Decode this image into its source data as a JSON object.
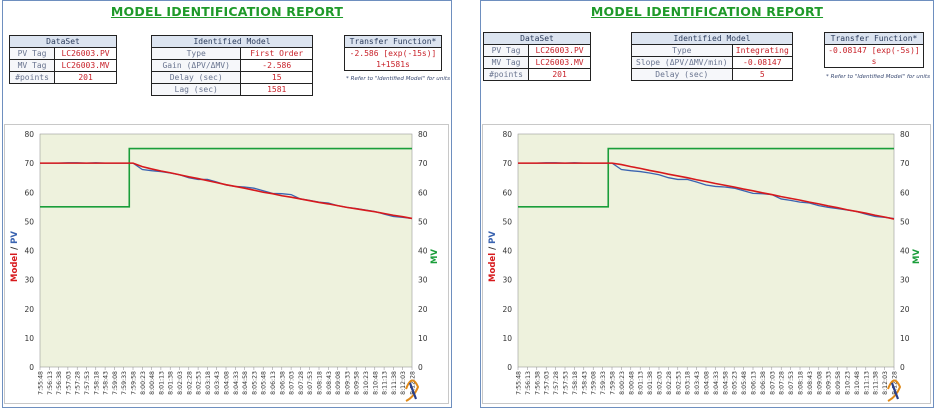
{
  "panels": [
    {
      "title": "MODEL IDENTIFICATION REPORT",
      "dataset": {
        "header": "DataSet",
        "rows": [
          {
            "label": "PV Tag",
            "value": "LC26003.PV"
          },
          {
            "label": "MV Tag",
            "value": "LC26003.MV"
          },
          {
            "label": "#points",
            "value": "201"
          }
        ]
      },
      "model": {
        "header": "Identified Model",
        "rows": [
          {
            "label": "Type",
            "value": "First Order"
          },
          {
            "label": "Gain (ΔPV/ΔMV)",
            "value": "-2.586"
          },
          {
            "label": "Delay (sec)",
            "value": "15"
          },
          {
            "label": "Lag (sec)",
            "value": "1581"
          }
        ]
      },
      "transfer": {
        "header": "Transfer Function*",
        "numerator": "-2.586 [exp(-15s)]",
        "denominator": "1+1581s",
        "note": "* Refer to \"Identified Model\" for units"
      }
    },
    {
      "title": "MODEL IDENTIFICATION REPORT",
      "dataset": {
        "header": "DataSet",
        "rows": [
          {
            "label": "PV Tag",
            "value": "LC26003.PV"
          },
          {
            "label": "MV Tag",
            "value": "LC26003.MV"
          },
          {
            "label": "#points",
            "value": "201"
          }
        ]
      },
      "model": {
        "header": "Identified Model",
        "rows": [
          {
            "label": "Type",
            "value": "Integrating"
          },
          {
            "label": "Slope (ΔPV/ΔMV/min)",
            "value": "-0.08147"
          },
          {
            "label": "Delay (sec)",
            "value": "5"
          }
        ]
      },
      "transfer": {
        "header": "Transfer Function*",
        "numerator": "-0.08147 [exp(-5s)]",
        "denominator": "s",
        "note": "* Refer to \"Identified Model\" for units"
      }
    }
  ],
  "chart_data": [
    {
      "type": "line",
      "ylabel_left_parts": [
        "Model",
        " / ",
        "PV"
      ],
      "ylabel_right": "MV",
      "ylim_left": [
        0,
        80
      ],
      "ylim_right": [
        0,
        80
      ],
      "yticks": [
        0,
        10,
        20,
        30,
        40,
        50,
        60,
        70,
        80
      ],
      "categories": [
        "7:55:48",
        "7:56:13",
        "7:56:38",
        "7:57:03",
        "7:57:28",
        "7:57:53",
        "7:58:18",
        "7:58:43",
        "7:59:08",
        "7:59:33",
        "7:59:58",
        "8:00:23",
        "8:00:48",
        "8:01:13",
        "8:01:38",
        "8:02:03",
        "8:02:28",
        "8:02:53",
        "8:03:18",
        "8:03:43",
        "8:04:08",
        "8:04:33",
        "8:04:58",
        "8:05:23",
        "8:05:48",
        "8:06:13",
        "8:06:38",
        "8:07:03",
        "8:07:28",
        "8:07:53",
        "8:08:18",
        "8:08:43",
        "8:09:08",
        "8:09:33",
        "8:09:58",
        "8:10:23",
        "8:10:48",
        "8:11:13",
        "8:11:38",
        "8:12:03",
        "8:12:28"
      ],
      "grid": false,
      "colors": {
        "model": "#d7191c",
        "pv": "#3a63b0",
        "mv": "#1a9e3a",
        "plot_bg": "#eef2dd"
      },
      "series": [
        {
          "key": "mv",
          "values": [
            55,
            55,
            55,
            55,
            55,
            55,
            55,
            55,
            55,
            55,
            75,
            75,
            75,
            75,
            75,
            75,
            75,
            75,
            75,
            75,
            75,
            75,
            75,
            75,
            75,
            75,
            75,
            75,
            75,
            75,
            75,
            75,
            75,
            75,
            75,
            75,
            75,
            75,
            75,
            75,
            75
          ]
        },
        {
          "key": "pv",
          "values": [
            70,
            70,
            70,
            70.1,
            70.1,
            70,
            70.1,
            70,
            70,
            70,
            70,
            67.8,
            67.4,
            67.1,
            66.6,
            66,
            65,
            64.4,
            64.4,
            63.5,
            62.5,
            62,
            61.8,
            61.4,
            60.5,
            59.6,
            59.5,
            59.2,
            57.7,
            57.2,
            56.6,
            56.3,
            55.4,
            54.8,
            54.4,
            53.9,
            53.4,
            52.5,
            51.7,
            51.4,
            51
          ]
        },
        {
          "key": "model",
          "values": [
            70,
            70,
            70,
            70,
            70,
            70,
            70,
            70,
            70,
            70,
            70,
            68.8,
            68,
            67.3,
            66.7,
            66,
            65.3,
            64.7,
            64,
            63.3,
            62.6,
            62,
            61.4,
            60.7,
            60,
            59.5,
            58.8,
            58.3,
            57.7,
            57.1,
            56.5,
            56,
            55.4,
            54.8,
            54.3,
            53.8,
            53.3,
            52.7,
            52.1,
            51.6,
            51
          ]
        }
      ]
    },
    {
      "type": "line",
      "ylabel_left_parts": [
        "Model",
        " / ",
        "PV"
      ],
      "ylabel_right": "MV",
      "ylim_left": [
        0,
        80
      ],
      "ylim_right": [
        0,
        80
      ],
      "yticks": [
        0,
        10,
        20,
        30,
        40,
        50,
        60,
        70,
        80
      ],
      "categories": [
        "7:55:48",
        "7:56:13",
        "7:56:38",
        "7:57:03",
        "7:57:28",
        "7:57:53",
        "7:58:18",
        "7:58:43",
        "7:59:08",
        "7:59:33",
        "7:59:58",
        "8:00:23",
        "8:00:48",
        "8:01:13",
        "8:01:38",
        "8:02:03",
        "8:02:28",
        "8:02:53",
        "8:03:18",
        "8:03:43",
        "8:04:08",
        "8:04:33",
        "8:04:58",
        "8:05:23",
        "8:05:48",
        "8:06:13",
        "8:06:38",
        "8:07:03",
        "8:07:28",
        "8:07:53",
        "8:08:18",
        "8:08:43",
        "8:09:08",
        "8:09:33",
        "8:09:58",
        "8:10:23",
        "8:10:48",
        "8:11:13",
        "8:11:38",
        "8:12:03",
        "8:12:28"
      ],
      "grid": false,
      "colors": {
        "model": "#d7191c",
        "pv": "#3a63b0",
        "mv": "#1a9e3a",
        "plot_bg": "#eef2dd"
      },
      "series": [
        {
          "key": "mv",
          "values": [
            55,
            55,
            55,
            55,
            55,
            55,
            55,
            55,
            55,
            55,
            75,
            75,
            75,
            75,
            75,
            75,
            75,
            75,
            75,
            75,
            75,
            75,
            75,
            75,
            75,
            75,
            75,
            75,
            75,
            75,
            75,
            75,
            75,
            75,
            75,
            75,
            75,
            75,
            75,
            75,
            75
          ]
        },
        {
          "key": "pv",
          "values": [
            70,
            70,
            70,
            70.1,
            70.1,
            70,
            70.1,
            70,
            70,
            70,
            70,
            67.8,
            67.4,
            67.1,
            66.6,
            66,
            65,
            64.4,
            64.4,
            63.5,
            62.5,
            62,
            61.8,
            61.4,
            60.5,
            59.6,
            59.5,
            59.2,
            57.7,
            57.2,
            56.6,
            56.3,
            55.4,
            54.8,
            54.4,
            53.9,
            53.4,
            52.5,
            51.7,
            51.4,
            51
          ]
        },
        {
          "key": "model",
          "values": [
            70,
            70,
            70,
            70,
            70,
            70,
            70,
            70,
            70,
            70,
            70,
            69.5,
            68.8,
            68.2,
            67.5,
            66.9,
            66.2,
            65.6,
            65,
            64.3,
            63.7,
            63,
            62.4,
            61.8,
            61.1,
            60.5,
            59.8,
            59.2,
            58.5,
            57.9,
            57.3,
            56.6,
            56,
            55.3,
            54.7,
            54,
            53.4,
            52.8,
            52.1,
            51.5,
            50.8
          ]
        }
      ]
    }
  ]
}
